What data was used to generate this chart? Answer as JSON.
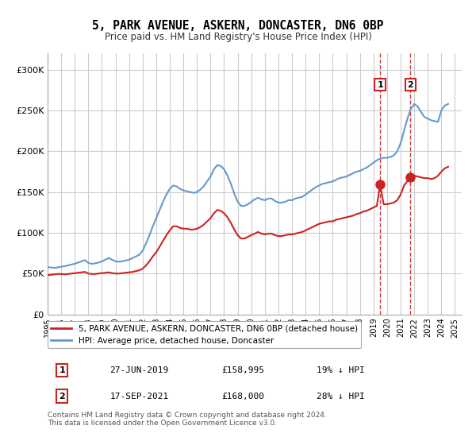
{
  "title": "5, PARK AVENUE, ASKERN, DONCASTER, DN6 0BP",
  "subtitle": "Price paid vs. HM Land Registry's House Price Index (HPI)",
  "title_fontsize": 11,
  "subtitle_fontsize": 9,
  "background_color": "#ffffff",
  "plot_bg_color": "#ffffff",
  "grid_color": "#cccccc",
  "hpi_color": "#6699cc",
  "price_color": "#cc2222",
  "ylim": [
    0,
    320000
  ],
  "xlim_start": 1995,
  "xlim_end": 2025.5,
  "yticks": [
    0,
    50000,
    100000,
    150000,
    200000,
    250000,
    300000
  ],
  "ytick_labels": [
    "£0",
    "£50K",
    "£100K",
    "£150K",
    "£200K",
    "£250K",
    "£300K"
  ],
  "xticks": [
    1995,
    1996,
    1997,
    1998,
    1999,
    2000,
    2001,
    2002,
    2003,
    2004,
    2005,
    2006,
    2007,
    2008,
    2009,
    2010,
    2011,
    2012,
    2013,
    2014,
    2015,
    2016,
    2017,
    2018,
    2019,
    2020,
    2021,
    2022,
    2023,
    2024,
    2025
  ],
  "sale1_x": 2019.487,
  "sale1_y": 158995,
  "sale1_label": "1",
  "sale2_x": 2021.717,
  "sale2_y": 168000,
  "sale2_label": "2",
  "legend_price_label": "5, PARK AVENUE, ASKERN, DONCASTER, DN6 0BP (detached house)",
  "legend_hpi_label": "HPI: Average price, detached house, Doncaster",
  "table_row1": [
    "1",
    "27-JUN-2019",
    "£158,995",
    "19% ↓ HPI"
  ],
  "table_row2": [
    "2",
    "17-SEP-2021",
    "£168,000",
    "28% ↓ HPI"
  ],
  "footnote": "Contains HM Land Registry data © Crown copyright and database right 2024.\nThis data is licensed under the Open Government Licence v3.0.",
  "hpi_data_x": [
    1995.0,
    1995.25,
    1995.5,
    1995.75,
    1996.0,
    1996.25,
    1996.5,
    1996.75,
    1997.0,
    1997.25,
    1997.5,
    1997.75,
    1998.0,
    1998.25,
    1998.5,
    1998.75,
    1999.0,
    1999.25,
    1999.5,
    1999.75,
    2000.0,
    2000.25,
    2000.5,
    2000.75,
    2001.0,
    2001.25,
    2001.5,
    2001.75,
    2002.0,
    2002.25,
    2002.5,
    2002.75,
    2003.0,
    2003.25,
    2003.5,
    2003.75,
    2004.0,
    2004.25,
    2004.5,
    2004.75,
    2005.0,
    2005.25,
    2005.5,
    2005.75,
    2006.0,
    2006.25,
    2006.5,
    2006.75,
    2007.0,
    2007.25,
    2007.5,
    2007.75,
    2008.0,
    2008.25,
    2008.5,
    2008.75,
    2009.0,
    2009.25,
    2009.5,
    2009.75,
    2010.0,
    2010.25,
    2010.5,
    2010.75,
    2011.0,
    2011.25,
    2011.5,
    2011.75,
    2012.0,
    2012.25,
    2012.5,
    2012.75,
    2013.0,
    2013.25,
    2013.5,
    2013.75,
    2014.0,
    2014.25,
    2014.5,
    2014.75,
    2015.0,
    2015.25,
    2015.5,
    2015.75,
    2016.0,
    2016.25,
    2016.5,
    2016.75,
    2017.0,
    2017.25,
    2017.5,
    2017.75,
    2018.0,
    2018.25,
    2018.5,
    2018.75,
    2019.0,
    2019.25,
    2019.5,
    2019.75,
    2020.0,
    2020.25,
    2020.5,
    2020.75,
    2021.0,
    2021.25,
    2021.5,
    2021.75,
    2022.0,
    2022.25,
    2022.5,
    2022.75,
    2023.0,
    2023.25,
    2023.5,
    2023.75,
    2024.0,
    2024.25,
    2024.5
  ],
  "hpi_data_y": [
    58000,
    57500,
    57000,
    57500,
    58500,
    59000,
    60000,
    61000,
    62000,
    63500,
    65000,
    66500,
    63000,
    62000,
    62500,
    63500,
    65000,
    67000,
    69000,
    67000,
    65000,
    64500,
    65000,
    66000,
    67000,
    69000,
    71000,
    73000,
    78000,
    87000,
    97000,
    108000,
    118000,
    128000,
    138000,
    147000,
    154000,
    158000,
    157000,
    154000,
    152000,
    151000,
    150000,
    149000,
    150000,
    153000,
    157000,
    163000,
    169000,
    178000,
    183000,
    182000,
    178000,
    170000,
    160000,
    148000,
    138000,
    133000,
    133000,
    135000,
    138000,
    141000,
    143000,
    141000,
    140000,
    142000,
    142000,
    139000,
    137000,
    137000,
    138000,
    140000,
    140000,
    142000,
    143000,
    144000,
    147000,
    150000,
    153000,
    156000,
    158000,
    160000,
    161000,
    162000,
    163000,
    165000,
    167000,
    168000,
    169000,
    171000,
    173000,
    175000,
    176000,
    178000,
    180000,
    183000,
    186000,
    189000,
    191000,
    192000,
    192000,
    193000,
    195000,
    200000,
    210000,
    225000,
    240000,
    252000,
    258000,
    255000,
    248000,
    242000,
    240000,
    238000,
    237000,
    236000,
    250000,
    256000,
    258000
  ],
  "price_data_x": [
    1995.0,
    1995.25,
    1995.5,
    1995.75,
    1996.0,
    1996.25,
    1996.5,
    1996.75,
    1997.0,
    1997.25,
    1997.5,
    1997.75,
    1998.0,
    1998.25,
    1998.5,
    1998.75,
    1999.0,
    1999.25,
    1999.5,
    1999.75,
    2000.0,
    2000.25,
    2000.5,
    2000.75,
    2001.0,
    2001.25,
    2001.5,
    2001.75,
    2002.0,
    2002.25,
    2002.5,
    2002.75,
    2003.0,
    2003.25,
    2003.5,
    2003.75,
    2004.0,
    2004.25,
    2004.5,
    2004.75,
    2005.0,
    2005.25,
    2005.5,
    2005.75,
    2006.0,
    2006.25,
    2006.5,
    2006.75,
    2007.0,
    2007.25,
    2007.5,
    2007.75,
    2008.0,
    2008.25,
    2008.5,
    2008.75,
    2009.0,
    2009.25,
    2009.5,
    2009.75,
    2010.0,
    2010.25,
    2010.5,
    2010.75,
    2011.0,
    2011.25,
    2011.5,
    2011.75,
    2012.0,
    2012.25,
    2012.5,
    2012.75,
    2013.0,
    2013.25,
    2013.5,
    2013.75,
    2014.0,
    2014.25,
    2014.5,
    2014.75,
    2015.0,
    2015.25,
    2015.5,
    2015.75,
    2016.0,
    2016.25,
    2016.5,
    2016.75,
    2017.0,
    2017.25,
    2017.5,
    2017.75,
    2018.0,
    2018.25,
    2018.5,
    2018.75,
    2019.0,
    2019.25,
    2019.487,
    2019.75,
    2020.0,
    2020.25,
    2020.5,
    2020.75,
    2021.0,
    2021.25,
    2021.717,
    2021.75,
    2022.0,
    2022.25,
    2022.5,
    2022.75,
    2023.0,
    2023.25,
    2023.5,
    2023.75,
    2024.0,
    2024.25,
    2024.5
  ],
  "price_data_y": [
    48000,
    48500,
    49000,
    49500,
    49500,
    49000,
    49500,
    50000,
    50500,
    51000,
    51500,
    52000,
    50000,
    49500,
    49500,
    50000,
    50500,
    51000,
    51500,
    50500,
    50000,
    50000,
    50500,
    51000,
    51500,
    52000,
    53000,
    54000,
    56000,
    60000,
    65000,
    71000,
    76000,
    83000,
    90000,
    97000,
    103000,
    108000,
    108000,
    106000,
    105000,
    105000,
    104000,
    104000,
    105000,
    107000,
    110000,
    114000,
    118000,
    124000,
    128000,
    127000,
    124000,
    119000,
    112000,
    104000,
    97000,
    93000,
    93000,
    95000,
    97000,
    99000,
    101000,
    99000,
    98000,
    99000,
    99000,
    97000,
    96000,
    96000,
    97000,
    98000,
    98000,
    99000,
    100000,
    101000,
    103000,
    105000,
    107000,
    109000,
    111000,
    112000,
    113000,
    114000,
    114000,
    116000,
    117000,
    118000,
    119000,
    120000,
    121000,
    123000,
    124000,
    126000,
    127000,
    129000,
    131000,
    133000,
    158995,
    135000,
    135000,
    136000,
    137000,
    140000,
    147000,
    158000,
    168000,
    169000,
    170000,
    169000,
    168000,
    167000,
    167000,
    166000,
    167000,
    170000,
    175000,
    179000,
    181000
  ]
}
